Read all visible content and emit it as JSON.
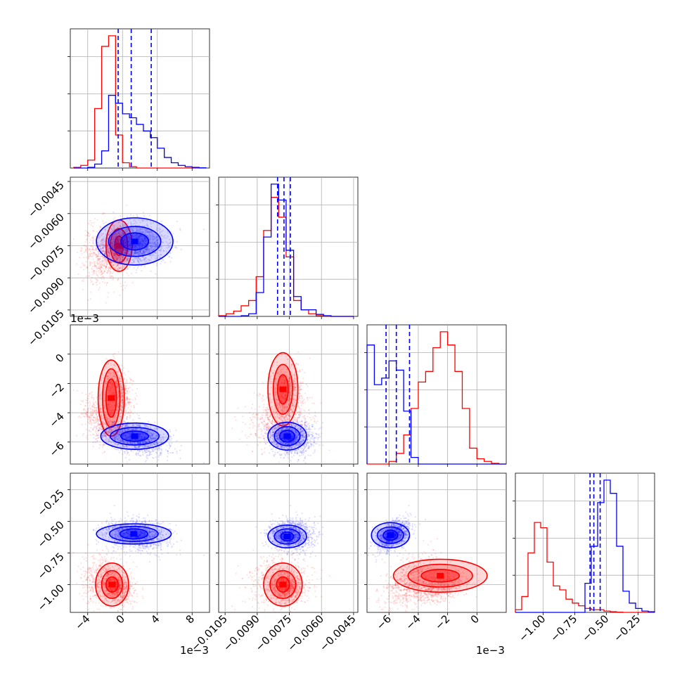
{
  "colors": {
    "red": "#ff0000",
    "blue": "#0000ff",
    "grid": "#b0b0b0",
    "axis": "#000000"
  },
  "chart_data": {
    "type": "corner",
    "parameters": 4,
    "series": [
      {
        "color": "red"
      },
      {
        "color": "blue"
      }
    ],
    "axes": {
      "p0": {
        "range": [
          -6.0,
          10.0
        ],
        "ticks": [
          -4,
          0,
          4,
          8
        ],
        "tick_labels": [
          "−4",
          "0",
          "4",
          "8"
        ],
        "multiplier": "1e−3"
      },
      "p1": {
        "range": [
          -0.0108,
          -0.0043
        ],
        "ticks": [
          -0.0105,
          -0.009,
          -0.0075,
          -0.006,
          -0.0045
        ],
        "tick_labels": [
          "−0.0105",
          "−0.0090",
          "−0.0075",
          "−0.0060",
          "−0.0045"
        ]
      },
      "p2": {
        "range": [
          -7.5,
          2.0
        ],
        "ticks": [
          -6,
          -4,
          -2,
          0
        ],
        "tick_labels": [
          "−6",
          "−4",
          "−2",
          "0"
        ],
        "multiplier": "1e−3"
      },
      "p3": {
        "range": [
          -1.22,
          -0.12
        ],
        "ticks": [
          -1.0,
          -0.75,
          -0.5,
          -0.25
        ],
        "tick_labels": [
          "−1.00",
          "−0.75",
          "−0.50",
          "−0.25"
        ]
      }
    },
    "histograms": [
      {
        "param": "p0",
        "bin_width": 0.8,
        "bin_start": -5.6,
        "red": [
          0.005,
          0.02,
          0.06,
          0.45,
          0.92,
          1.0,
          0.25,
          0.04,
          0.01,
          0.0,
          0.0,
          0.0,
          0.0,
          0.0,
          0.0,
          0.0,
          0.0,
          0.0,
          0.0
        ],
        "blue": [
          0.0,
          0.0,
          0.005,
          0.03,
          0.13,
          0.55,
          0.49,
          0.41,
          0.38,
          0.33,
          0.28,
          0.23,
          0.15,
          0.08,
          0.04,
          0.02,
          0.01,
          0.005,
          0.002
        ],
        "blue_quantiles": [
          -0.5,
          1.0,
          3.3
        ]
      },
      {
        "param": "p1",
        "bin_width": 0.00035,
        "bin_start": -0.0108,
        "red": [
          0.005,
          0.02,
          0.04,
          0.08,
          0.12,
          0.3,
          0.65,
          0.9,
          0.75,
          0.45,
          0.12,
          0.05,
          0.02,
          0.005,
          0.002,
          0.0,
          0.0,
          0.0
        ],
        "blue": [
          0.0,
          0.0,
          0.0,
          0.005,
          0.02,
          0.18,
          0.6,
          1.0,
          0.88,
          0.5,
          0.15,
          0.05,
          0.05,
          0.015,
          0.005,
          0.0,
          0.0,
          0.0
        ],
        "blue_quantiles": [
          -0.00805,
          -0.00775,
          -0.00745
        ]
      },
      {
        "param": "p2",
        "bin_width": 0.5,
        "bin_start": -7.5,
        "red": [
          0.0,
          0.0,
          0.0,
          0.02,
          0.08,
          0.22,
          0.42,
          0.62,
          0.7,
          0.88,
          1.0,
          0.9,
          0.7,
          0.42,
          0.12,
          0.04,
          0.02,
          0.005,
          0.0
        ],
        "blue": [
          0.9,
          0.6,
          0.65,
          0.78,
          0.71,
          0.4,
          0.05,
          0.0,
          0.0,
          0.0,
          0.0,
          0.0,
          0.0,
          0.0,
          0.0,
          0.0,
          0.0,
          0.0,
          0.0
        ],
        "blue_quantiles": [
          -6.2,
          -5.5,
          -4.6
        ]
      },
      {
        "param": "p3",
        "bin_width": 0.05,
        "bin_start": -1.22,
        "red": [
          0.02,
          0.12,
          0.45,
          0.68,
          0.64,
          0.38,
          0.2,
          0.17,
          0.1,
          0.07,
          0.05,
          0.03,
          0.02,
          0.02,
          0.01,
          0.005,
          0.002,
          0.0,
          0.0,
          0.0,
          0.0,
          0.0
        ],
        "blue": [
          0.0,
          0.0,
          0.0,
          0.0,
          0.0,
          0.0,
          0.0,
          0.0,
          0.0,
          0.0,
          0.0,
          0.22,
          0.5,
          0.83,
          1.0,
          0.9,
          0.5,
          0.16,
          0.07,
          0.03,
          0.01,
          0.005
        ],
        "blue_quantiles": [
          -0.63,
          -0.6,
          -0.55
        ]
      }
    ],
    "clusters": {
      "red": [
        {
          "mean": [
            -0.5,
            -0.0076,
            -2.6,
            -1.02
          ],
          "sd": [
            0.8,
            0.0004,
            0.9,
            0.05
          ]
        },
        {
          "mean": [
            -2.0,
            -0.008,
            -4.6,
            -0.98
          ],
          "sd": [
            1.4,
            0.0007,
            0.8,
            0.09
          ]
        }
      ],
      "blue": [
        {
          "mean": [
            1.5,
            -0.0074,
            -5.7,
            -0.61
          ],
          "sd": [
            1.7,
            0.0005,
            0.5,
            0.05
          ]
        }
      ]
    },
    "contours": [
      {
        "row": 1,
        "col": 0,
        "series": "red",
        "cx": -0.4,
        "cy": -0.0075,
        "levels": [
          [
            0.5,
            0.00045
          ],
          [
            1.0,
            0.0008
          ],
          [
            1.5,
            0.0012
          ]
        ]
      },
      {
        "row": 1,
        "col": 0,
        "series": "blue",
        "cx": 1.4,
        "cy": -0.0073,
        "levels": [
          [
            1.6,
            0.0004
          ],
          [
            3.0,
            0.0007
          ],
          [
            4.4,
            0.0011
          ]
        ]
      },
      {
        "row": 2,
        "col": 0,
        "series": "red",
        "cx": -1.3,
        "cy": -3.0,
        "levels": [
          [
            0.6,
            1.3
          ],
          [
            1.0,
            2.0
          ],
          [
            1.5,
            2.6
          ]
        ]
      },
      {
        "row": 2,
        "col": 0,
        "series": "blue",
        "cx": 1.4,
        "cy": -5.6,
        "levels": [
          [
            1.6,
            0.35
          ],
          [
            2.8,
            0.6
          ],
          [
            3.9,
            0.9
          ]
        ]
      },
      {
        "row": 2,
        "col": 1,
        "series": "red",
        "cx": -0.0078,
        "cy": -2.4,
        "levels": [
          [
            0.00025,
            1.0
          ],
          [
            0.00045,
            1.7
          ],
          [
            0.0007,
            2.5
          ]
        ]
      },
      {
        "row": 2,
        "col": 1,
        "series": "blue",
        "cx": -0.0076,
        "cy": -5.6,
        "levels": [
          [
            0.00035,
            0.4
          ],
          [
            0.0006,
            0.65
          ],
          [
            0.0009,
            0.95
          ]
        ]
      },
      {
        "row": 3,
        "col": 0,
        "series": "red",
        "cx": -1.2,
        "cy": -1.0,
        "levels": [
          [
            0.7,
            0.06
          ],
          [
            1.2,
            0.11
          ],
          [
            1.9,
            0.17
          ]
        ]
      },
      {
        "row": 3,
        "col": 0,
        "series": "blue",
        "cx": 1.3,
        "cy": -0.6,
        "levels": [
          [
            1.6,
            0.04
          ],
          [
            2.8,
            0.06
          ],
          [
            4.3,
            0.08
          ]
        ]
      },
      {
        "row": 3,
        "col": 1,
        "series": "red",
        "cx": -0.0078,
        "cy": -1.0,
        "levels": [
          [
            0.0003,
            0.06
          ],
          [
            0.0006,
            0.11
          ],
          [
            0.0009,
            0.17
          ]
        ]
      },
      {
        "row": 3,
        "col": 1,
        "series": "blue",
        "cx": -0.0076,
        "cy": -0.62,
        "levels": [
          [
            0.0003,
            0.035
          ],
          [
            0.0006,
            0.06
          ],
          [
            0.0009,
            0.09
          ]
        ]
      },
      {
        "row": 3,
        "col": 2,
        "series": "red",
        "cx": -2.5,
        "cy": -0.93,
        "levels": [
          [
            1.3,
            0.05
          ],
          [
            2.2,
            0.09
          ],
          [
            3.2,
            0.13
          ]
        ]
      },
      {
        "row": 3,
        "col": 2,
        "series": "blue",
        "cx": -5.9,
        "cy": -0.61,
        "levels": [
          [
            0.5,
            0.04
          ],
          [
            0.9,
            0.065
          ],
          [
            1.3,
            0.1
          ]
        ]
      }
    ]
  }
}
